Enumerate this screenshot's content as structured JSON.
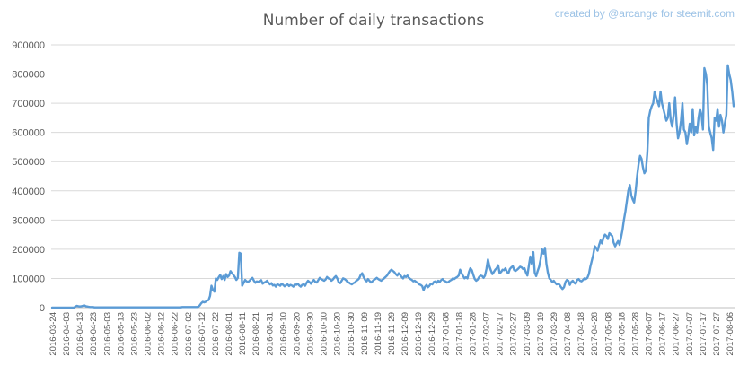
{
  "chart_data": {
    "type": "line",
    "title": "Number of daily transactions",
    "credit": "created by @arcange for steemit.com",
    "xlabel": "",
    "ylabel": "",
    "ylim": [
      0,
      900000
    ],
    "yticks": [
      0,
      100000,
      200000,
      300000,
      400000,
      500000,
      600000,
      700000,
      800000,
      900000
    ],
    "ytick_labels": [
      "0",
      "100000",
      "200000",
      "300000",
      "400000",
      "500000",
      "600000",
      "700000",
      "800000",
      "900000"
    ],
    "xtick_labels": [
      "2016-03-24",
      "2016-04-03",
      "2016-04-13",
      "2016-04-23",
      "2016-05-03",
      "2016-05-13",
      "2016-05-23",
      "2016-06-02",
      "2016-06-12",
      "2016-06-22",
      "2016-07-02",
      "2016-07-12",
      "2016-07-22",
      "2016-08-01",
      "2016-08-11",
      "2016-08-21",
      "2016-08-31",
      "2016-09-10",
      "2016-09-20",
      "2016-09-30",
      "2016-10-10",
      "2016-10-20",
      "2016-10-30",
      "2016-11-09",
      "2016-11-19",
      "2016-11-29",
      "2016-12-09",
      "2016-12-19",
      "2016-12-29",
      "2017-01-08",
      "2017-01-18",
      "2017-01-28",
      "2017-02-07",
      "2017-02-17",
      "2017-02-27",
      "2017-03-09",
      "2017-03-19",
      "2017-03-29",
      "2017-04-08",
      "2017-04-18",
      "2017-04-28",
      "2017-05-08",
      "2017-05-18",
      "2017-05-28",
      "2017-06-07",
      "2017-06-17",
      "2017-06-27",
      "2017-07-07",
      "2017-07-17",
      "2017-07-27",
      "2017-08-06"
    ],
    "grid": true,
    "legend": "none",
    "colors": {
      "line": "#5b9bd5",
      "grid": "#d9d9d9"
    },
    "series": [
      {
        "values": [
          0,
          0,
          0,
          0,
          0,
          0,
          0,
          0,
          0,
          0,
          0,
          0,
          0,
          0,
          0,
          0,
          4000,
          6000,
          5000,
          4000,
          5000,
          6000,
          8000,
          5000,
          4000,
          3000,
          2000,
          2000,
          2000,
          1000,
          1000,
          1000,
          1000,
          1000,
          1000,
          1000,
          1000,
          1000,
          1000,
          1000,
          1000,
          1000,
          1000,
          1000,
          1000,
          1000,
          1000,
          1000,
          1000,
          1000,
          1000,
          1000,
          1000,
          1000,
          1000,
          1000,
          1000,
          1000,
          1000,
          1000,
          1000,
          1000,
          1000,
          1000,
          1000,
          1000,
          1000,
          1000,
          1000,
          1000,
          1000,
          1000,
          1000,
          1000,
          1000,
          1000,
          1000,
          1000,
          1000,
          1000,
          1000,
          1000,
          1000,
          1000,
          1000,
          1000,
          1000,
          1000,
          1000,
          2000,
          2000,
          2000,
          2000,
          2000,
          2000,
          2000,
          2000,
          2000,
          2000,
          2000,
          3000,
          8000,
          15000,
          20000,
          18000,
          20000,
          24000,
          26000,
          40000,
          75000,
          60000,
          55000,
          100000,
          95000,
          105000,
          112000,
          98000,
          108000,
          95000,
          115000,
          105000,
          110000,
          125000,
          118000,
          112000,
          105000,
          95000,
          102000,
          188000,
          185000,
          75000,
          85000,
          95000,
          90000,
          88000,
          92000,
          98000,
          102000,
          92000,
          85000,
          90000,
          88000,
          92000,
          94000,
          82000,
          86000,
          88000,
          92000,
          85000,
          80000,
          84000,
          76000,
          78000,
          72000,
          80000,
          78000,
          75000,
          82000,
          78000,
          73000,
          77000,
          80000,
          74000,
          78000,
          76000,
          72000,
          80000,
          78000,
          82000,
          76000,
          72000,
          78000,
          80000,
          75000,
          85000,
          92000,
          88000,
          82000,
          90000,
          95000,
          88000,
          86000,
          94000,
          102000,
          98000,
          95000,
          92000,
          96000,
          105000,
          100000,
          98000,
          92000,
          96000,
          103000,
          108000,
          100000,
          86000,
          84000,
          92000,
          100000,
          98000,
          94000,
          88000,
          86000,
          82000,
          80000,
          84000,
          86000,
          92000,
          95000,
          100000,
          112000,
          118000,
          105000,
          95000,
          90000,
          98000,
          92000,
          86000,
          90000,
          95000,
          98000,
          102000,
          98000,
          95000,
          92000,
          96000,
          100000,
          105000,
          110000,
          118000,
          125000,
          130000,
          126000,
          122000,
          115000,
          110000,
          118000,
          112000,
          105000,
          100000,
          108000,
          105000,
          110000,
          102000,
          98000,
          95000,
          90000,
          92000,
          88000,
          85000,
          80000,
          78000,
          74000,
          60000,
          72000,
          78000,
          70000,
          75000,
          82000,
          80000,
          88000,
          90000,
          85000,
          92000,
          88000,
          94000,
          98000,
          92000,
          90000,
          86000,
          88000,
          92000,
          95000,
          100000,
          98000,
          102000,
          105000,
          110000,
          130000,
          118000,
          108000,
          100000,
          104000,
          100000,
          122000,
          135000,
          128000,
          112000,
          98000,
          92000,
          96000,
          105000,
          110000,
          108000,
          102000,
          110000,
          132000,
          165000,
          142000,
          128000,
          115000,
          122000,
          130000,
          135000,
          145000,
          118000,
          122000,
          130000,
          128000,
          135000,
          122000,
          118000,
          132000,
          138000,
          142000,
          128000,
          126000,
          130000,
          135000,
          140000,
          138000,
          132000,
          135000,
          120000,
          110000,
          145000,
          175000,
          150000,
          190000,
          120000,
          108000,
          125000,
          140000,
          165000,
          200000,
          185000,
          205000,
          150000,
          120000,
          100000,
          95000,
          88000,
          92000,
          85000,
          80000,
          82000,
          78000,
          70000,
          64000,
          70000,
          88000,
          95000,
          92000,
          78000,
          88000,
          92000,
          85000,
          82000,
          95000,
          98000,
          92000,
          90000,
          95000,
          100000,
          98000,
          102000,
          115000,
          140000,
          160000,
          180000,
          210000,
          205000,
          195000,
          215000,
          230000,
          220000,
          240000,
          250000,
          245000,
          235000,
          255000,
          250000,
          245000,
          222000,
          210000,
          220000,
          228000,
          215000,
          240000,
          265000,
          300000,
          330000,
          365000,
          400000,
          420000,
          385000,
          370000,
          360000,
          400000,
          450000,
          490000,
          520000,
          510000,
          480000,
          460000,
          470000,
          530000,
          650000,
          675000,
          690000,
          700000,
          740000,
          720000,
          705000,
          690000,
          740000,
          700000,
          680000,
          660000,
          640000,
          650000,
          700000,
          640000,
          620000,
          660000,
          720000,
          630000,
          580000,
          600000,
          640000,
          700000,
          610000,
          600000,
          560000,
          590000,
          630000,
          600000,
          680000,
          590000,
          620000,
          600000,
          650000,
          680000,
          660000,
          610000,
          820000,
          800000,
          760000,
          620000,
          600000,
          580000,
          540000,
          650000,
          640000,
          680000,
          620000,
          660000,
          640000,
          600000,
          630000,
          660000,
          830000,
          800000,
          780000,
          740000,
          690000
        ]
      }
    ]
  }
}
